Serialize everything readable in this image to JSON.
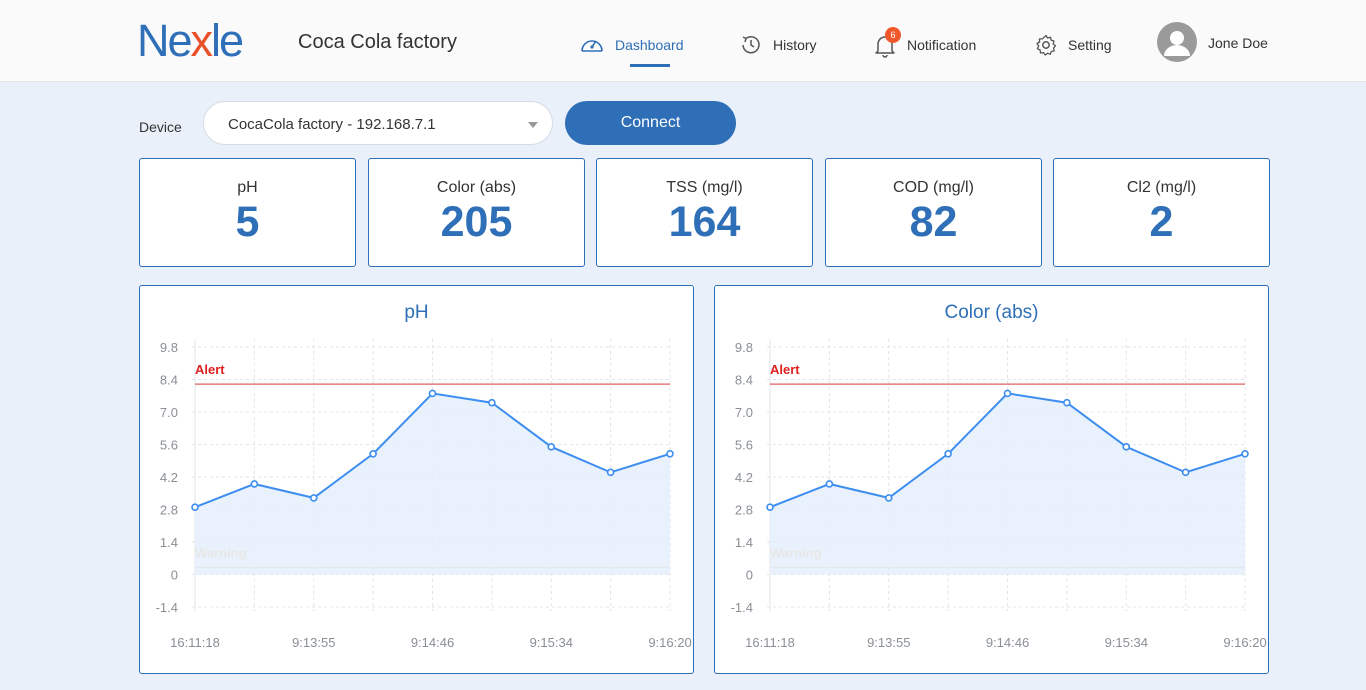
{
  "header": {
    "logo_pre": "Ne",
    "logo_x": "x",
    "logo_post": "le",
    "factory": "Coca Cola factory",
    "nav": {
      "dashboard": "Dashboard",
      "history": "History",
      "notification": "Notification",
      "setting": "Setting"
    },
    "notification_count": "6",
    "user": "Jone Doe"
  },
  "device": {
    "label": "Device",
    "selected": "CocaCola factory - 192.168.7.1",
    "connect_label": "Connect"
  },
  "metrics": [
    {
      "label": "pH",
      "value": "5"
    },
    {
      "label": "Color (abs)",
      "value": "205"
    },
    {
      "label": "TSS (mg/l)",
      "value": "164"
    },
    {
      "label": "COD (mg/l)",
      "value": "82"
    },
    {
      "label": "Cl2 (mg/l)",
      "value": "2"
    }
  ],
  "colors": {
    "accent": "#2e6fb7",
    "alert": "#e02020",
    "warning": "#f5a623",
    "line": "#3d8ef0"
  },
  "chart_data": [
    {
      "type": "line",
      "title": "pH",
      "x": [
        "16:11:18",
        "",
        "9:13:55",
        "",
        "9:14:46",
        "",
        "9:15:34",
        "",
        "9:16:20"
      ],
      "x_tick_labels": [
        "16:11:18",
        "9:13:55",
        "9:14:46",
        "9:15:34",
        "9:16:20"
      ],
      "series": [
        {
          "values": [
            2.9,
            3.9,
            3.3,
            5.2,
            7.8,
            7.4,
            5.5,
            4.4,
            5.2
          ]
        }
      ],
      "y_ticks": [
        "9.8",
        "8.4",
        "7.0",
        "5.6",
        "4.2",
        "2.8",
        "1.4",
        "0",
        "-1.4"
      ],
      "ylim": [
        -1.4,
        9.8
      ],
      "thresholds": [
        {
          "label": "Alert",
          "value": 8.2
        },
        {
          "label": "Warning",
          "value": 0.3
        }
      ],
      "grid": true,
      "area_fill": true
    },
    {
      "type": "line",
      "title": "Color (abs)",
      "x": [
        "16:11:18",
        "",
        "9:13:55",
        "",
        "9:14:46",
        "",
        "9:15:34",
        "",
        "9:16:20"
      ],
      "x_tick_labels": [
        "16:11:18",
        "9:13:55",
        "9:14:46",
        "9:15:34",
        "9:16:20"
      ],
      "series": [
        {
          "values": [
            2.9,
            3.9,
            3.3,
            5.2,
            7.8,
            7.4,
            5.5,
            4.4,
            5.2
          ]
        }
      ],
      "y_ticks": [
        "9.8",
        "8.4",
        "7.0",
        "5.6",
        "4.2",
        "2.8",
        "1.4",
        "0",
        "-1.4"
      ],
      "ylim": [
        -1.4,
        9.8
      ],
      "thresholds": [
        {
          "label": "Alert",
          "value": 8.2
        },
        {
          "label": "Warning",
          "value": 0.3
        }
      ],
      "grid": true,
      "area_fill": true
    }
  ]
}
